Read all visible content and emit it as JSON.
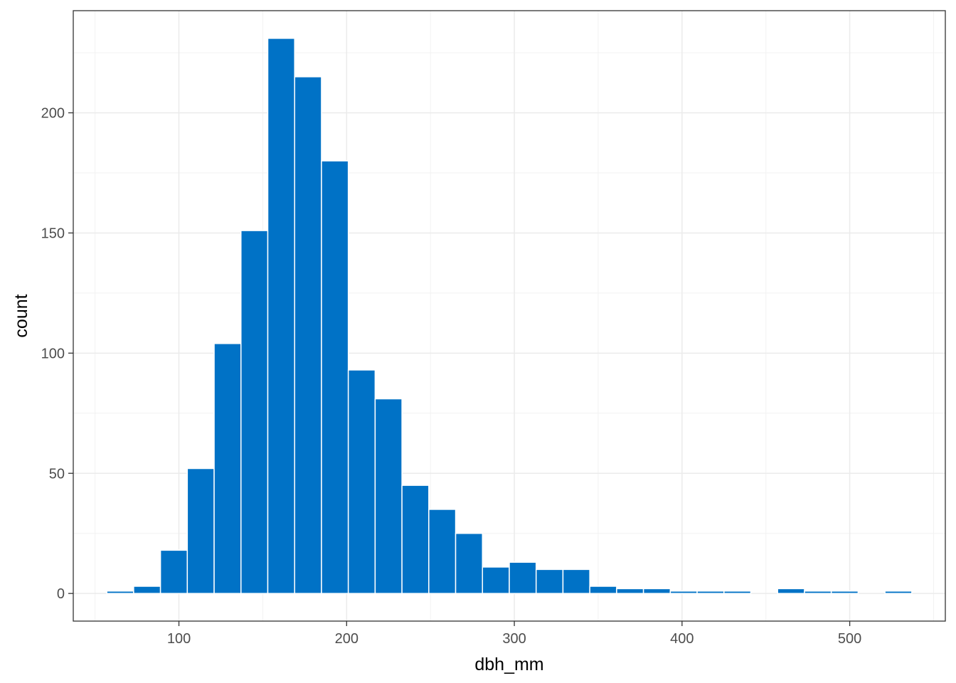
{
  "chart_data": {
    "type": "bar",
    "subtype": "histogram",
    "xlabel": "dbh_mm",
    "ylabel": "count",
    "xlim": [
      37,
      557
    ],
    "ylim": [
      -11.5,
      242.5
    ],
    "x_ticks": [
      100,
      200,
      300,
      400,
      500
    ],
    "y_ticks": [
      0,
      50,
      100,
      150,
      200
    ],
    "grid": true,
    "bar_color": "#0072C6",
    "bar_outline": "#ffffff",
    "bins": [
      {
        "x0": 57,
        "x1": 73,
        "count": 1
      },
      {
        "x0": 73,
        "x1": 89,
        "count": 3
      },
      {
        "x0": 89,
        "x1": 105,
        "count": 18
      },
      {
        "x0": 105,
        "x1": 121,
        "count": 52
      },
      {
        "x0": 121,
        "x1": 137,
        "count": 104
      },
      {
        "x0": 137,
        "x1": 153,
        "count": 151
      },
      {
        "x0": 153,
        "x1": 169,
        "count": 231
      },
      {
        "x0": 169,
        "x1": 185,
        "count": 215
      },
      {
        "x0": 185,
        "x1": 201,
        "count": 180
      },
      {
        "x0": 201,
        "x1": 217,
        "count": 93
      },
      {
        "x0": 217,
        "x1": 233,
        "count": 81
      },
      {
        "x0": 233,
        "x1": 249,
        "count": 45
      },
      {
        "x0": 249,
        "x1": 265,
        "count": 35
      },
      {
        "x0": 265,
        "x1": 281,
        "count": 25
      },
      {
        "x0": 281,
        "x1": 297,
        "count": 11
      },
      {
        "x0": 297,
        "x1": 313,
        "count": 13
      },
      {
        "x0": 313,
        "x1": 329,
        "count": 10
      },
      {
        "x0": 329,
        "x1": 345,
        "count": 10
      },
      {
        "x0": 345,
        "x1": 361,
        "count": 3
      },
      {
        "x0": 361,
        "x1": 377,
        "count": 2
      },
      {
        "x0": 377,
        "x1": 393,
        "count": 2
      },
      {
        "x0": 393,
        "x1": 409,
        "count": 1
      },
      {
        "x0": 409,
        "x1": 425,
        "count": 1
      },
      {
        "x0": 425,
        "x1": 441,
        "count": 1
      },
      {
        "x0": 441,
        "x1": 457,
        "count": 0
      },
      {
        "x0": 457,
        "x1": 473,
        "count": 2
      },
      {
        "x0": 473,
        "x1": 489,
        "count": 1
      },
      {
        "x0": 489,
        "x1": 505,
        "count": 1
      },
      {
        "x0": 505,
        "x1": 521,
        "count": 0
      },
      {
        "x0": 521,
        "x1": 537,
        "count": 1
      }
    ]
  }
}
